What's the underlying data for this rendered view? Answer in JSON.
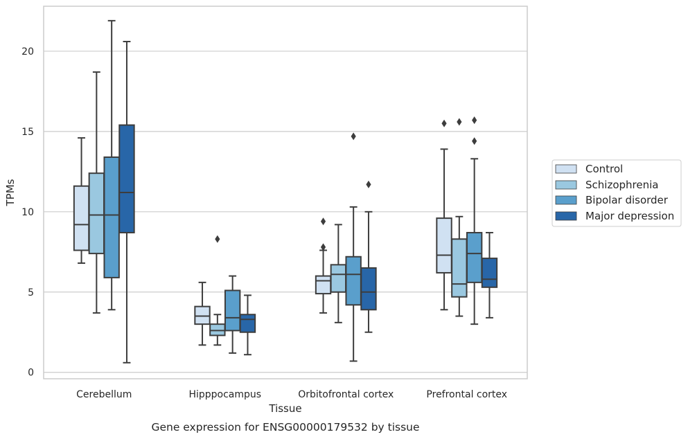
{
  "caption": "Gene expression for ENSG00000179532 by tissue",
  "chart_data": {
    "type": "box",
    "xlabel": "Tissue",
    "ylabel": "TPMs",
    "ylim": [
      -0.4,
      22.8
    ],
    "yticks": [
      0,
      5,
      10,
      15,
      20
    ],
    "grid": "horizontal",
    "legend_position": "right",
    "categories": [
      "Cerebellum",
      "Hipppocampus",
      "Orbitofrontal cortex",
      "Prefrontal cortex"
    ],
    "series": [
      {
        "name": "Control",
        "color": "#d0e1f2",
        "boxes": [
          {
            "min": 6.8,
            "q1": 7.6,
            "median": 9.2,
            "q3": 11.6,
            "max": 14.6,
            "outliers": []
          },
          {
            "min": 1.7,
            "q1": 3.0,
            "median": 3.5,
            "q3": 4.1,
            "max": 5.6,
            "outliers": []
          },
          {
            "min": 3.7,
            "q1": 4.9,
            "median": 5.7,
            "q3": 6.0,
            "max": 7.6,
            "outliers": [
              7.8,
              9.4
            ]
          },
          {
            "min": 3.9,
            "q1": 6.2,
            "median": 7.3,
            "q3": 9.6,
            "max": 13.9,
            "outliers": [
              15.5
            ]
          }
        ]
      },
      {
        "name": "Schizophrenia",
        "color": "#9ac8e0",
        "boxes": [
          {
            "min": 3.7,
            "q1": 7.4,
            "median": 9.8,
            "q3": 12.4,
            "max": 18.7,
            "outliers": []
          },
          {
            "min": 1.7,
            "q1": 2.3,
            "median": 2.6,
            "q3": 3.0,
            "max": 3.6,
            "outliers": [
              8.3
            ]
          },
          {
            "min": 3.1,
            "q1": 5.0,
            "median": 6.1,
            "q3": 6.7,
            "max": 9.2,
            "outliers": []
          },
          {
            "min": 3.5,
            "q1": 4.7,
            "median": 5.5,
            "q3": 8.3,
            "max": 9.7,
            "outliers": [
              15.6
            ]
          }
        ]
      },
      {
        "name": "Bipolar disorder",
        "color": "#5a9fcc",
        "boxes": [
          {
            "min": 3.9,
            "q1": 5.9,
            "median": 9.8,
            "q3": 13.4,
            "max": 21.9,
            "outliers": []
          },
          {
            "min": 1.2,
            "q1": 2.6,
            "median": 3.4,
            "q3": 5.1,
            "max": 6.0,
            "outliers": []
          },
          {
            "min": 0.7,
            "q1": 4.2,
            "median": 6.1,
            "q3": 7.2,
            "max": 10.3,
            "outliers": [
              14.7
            ]
          },
          {
            "min": 3.0,
            "q1": 5.6,
            "median": 7.4,
            "q3": 8.7,
            "max": 13.3,
            "outliers": [
              14.4,
              15.7
            ]
          }
        ]
      },
      {
        "name": "Major depression",
        "color": "#2866a8",
        "boxes": [
          {
            "min": 0.6,
            "q1": 8.7,
            "median": 11.2,
            "q3": 15.4,
            "max": 20.6,
            "outliers": []
          },
          {
            "min": 1.1,
            "q1": 2.5,
            "median": 3.3,
            "q3": 3.6,
            "max": 4.8,
            "outliers": []
          },
          {
            "min": 2.5,
            "q1": 3.9,
            "median": 5.0,
            "q3": 6.5,
            "max": 10.0,
            "outliers": [
              11.7
            ]
          },
          {
            "min": 3.4,
            "q1": 5.3,
            "median": 5.8,
            "q3": 7.1,
            "max": 8.7,
            "outliers": []
          }
        ]
      }
    ]
  }
}
